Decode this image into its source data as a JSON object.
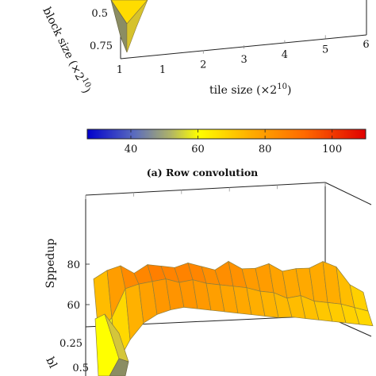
{
  "colors": {
    "colormap": [
      "#0000cc",
      "#4a5cc0",
      "#9aa888",
      "#ffff00",
      "#ffd000",
      "#ff9c00",
      "#ff5a00",
      "#e40000"
    ],
    "surface_edge": "#8f7f3c",
    "frame": "#222222"
  },
  "chart_data": [
    {
      "type": "surface",
      "title": "",
      "xlabel": "tile size (×2¹⁰)",
      "ylabel": "block size (×2¹⁰)",
      "zlabel": "",
      "x_ticks": [
        "1",
        "2",
        "3",
        "4",
        "5",
        "6"
      ],
      "y_ticks": [
        "0.5",
        "0.75",
        "1"
      ],
      "visible_surface_fragment": {
        "note": "",
        "x": [
          1,
          1.25
        ],
        "y": [
          0.5,
          1
        ],
        "z_color_values": [
          62,
          42
        ]
      }
    },
    {
      "type": "colorbar",
      "ticks": [
        "40",
        "60",
        "80",
        "100"
      ],
      "range": [
        27,
        110
      ]
    },
    {
      "type": "surface",
      "caption": "(a) Row convolution",
      "zlabel": "Sppedup",
      "z_ticks": [
        "60",
        "80"
      ],
      "ylabel": "bl",
      "y_ticks": [
        "0.25",
        "0.5"
      ],
      "series": [
        {
          "name": "",
          "row_y": 0.25,
          "x": [
            1,
            1.25,
            1.5,
            1.75,
            2,
            2.25,
            2.5,
            2.75,
            3,
            3.25,
            3.5,
            3.75,
            4,
            4.25,
            4.5,
            4.75,
            5,
            5.25,
            5.5,
            5.75,
            6
          ],
          "z": [
            86,
            90,
            92,
            88,
            92,
            91,
            90,
            92,
            90,
            88,
            92,
            88,
            88,
            90,
            86,
            87,
            87,
            90,
            87,
            78,
            74
          ]
        },
        {
          "name": "",
          "row_y": 0.5,
          "x": [
            1,
            1.25,
            1.5,
            1.75,
            2,
            2.25,
            2.5,
            2.75,
            3,
            3.25,
            3.5,
            3.75,
            4,
            4.25,
            4.5,
            4.75,
            5,
            5.25,
            5.5,
            5.75,
            6
          ],
          "z": [
            66,
            74,
            88,
            90,
            91,
            92,
            90,
            91,
            89,
            88,
            87,
            86,
            84,
            83,
            80,
            81,
            78,
            77,
            76,
            74,
            72
          ]
        },
        {
          "name": "",
          "row_y": 0.75,
          "x": [
            1,
            1.25,
            1.5,
            1.75,
            2,
            2.25,
            2.5,
            2.75,
            3,
            3.25,
            3.5,
            3.75,
            4,
            4.25,
            4.5,
            4.75,
            5,
            5.25,
            5.5,
            5.75,
            6
          ],
          "z": [
            44,
            58,
            70,
            78,
            82,
            84,
            85,
            84,
            83,
            82,
            81,
            80,
            79,
            78,
            78,
            77,
            76,
            75,
            74,
            73,
            72
          ]
        }
      ]
    }
  ],
  "labels": {
    "top_xlabel": "tile size (×2",
    "top_xlabel_exp": "10",
    "top_xlabel_end": ")",
    "top_ylabel": "block size (×2",
    "top_ylabel_exp": "10",
    "top_ylabel_end": ")",
    "caption": "(a) Row convolution",
    "bottom_zlabel": "Sppedup",
    "bottom_ylabel": "bl"
  }
}
